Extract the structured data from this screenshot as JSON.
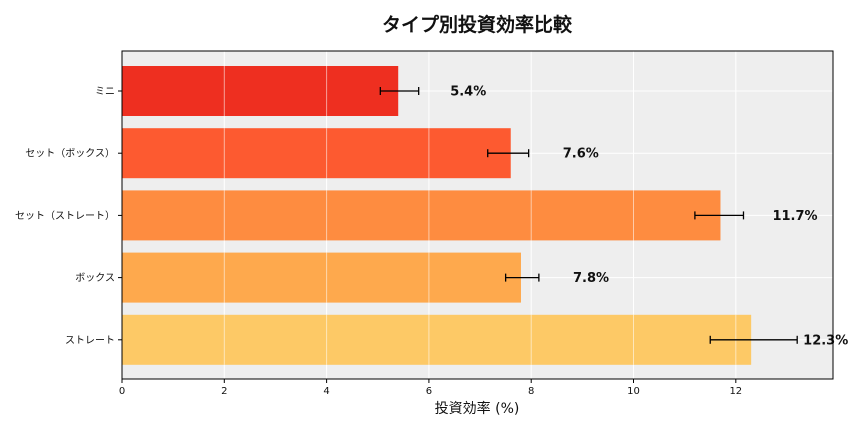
{
  "chart_data": {
    "type": "bar",
    "orientation": "horizontal",
    "title": "タイプ別投資効率比較",
    "xlabel": "投資効率 (%)",
    "ylabel": "",
    "xlim": [
      0,
      13.9
    ],
    "xticks": [
      0,
      2,
      4,
      6,
      8,
      10,
      12
    ],
    "grid": true,
    "categories": [
      "ミニ",
      "セット（ボックス）",
      "セット（ストレート）",
      "ボックス",
      "ストレート"
    ],
    "values": [
      5.4,
      7.6,
      11.7,
      7.8,
      12.3
    ],
    "error_low": [
      5.05,
      7.15,
      11.2,
      7.5,
      11.5
    ],
    "error_high": [
      5.8,
      7.95,
      12.15,
      8.15,
      13.2
    ],
    "data_labels": [
      "5.4%",
      "7.6%",
      "11.7%",
      "7.8%",
      "12.3%"
    ],
    "colors": [
      "#ee2f20",
      "#fd5a30",
      "#fe8c40",
      "#fea94d",
      "#fdc966"
    ],
    "plot_background": "#eeeeee"
  }
}
